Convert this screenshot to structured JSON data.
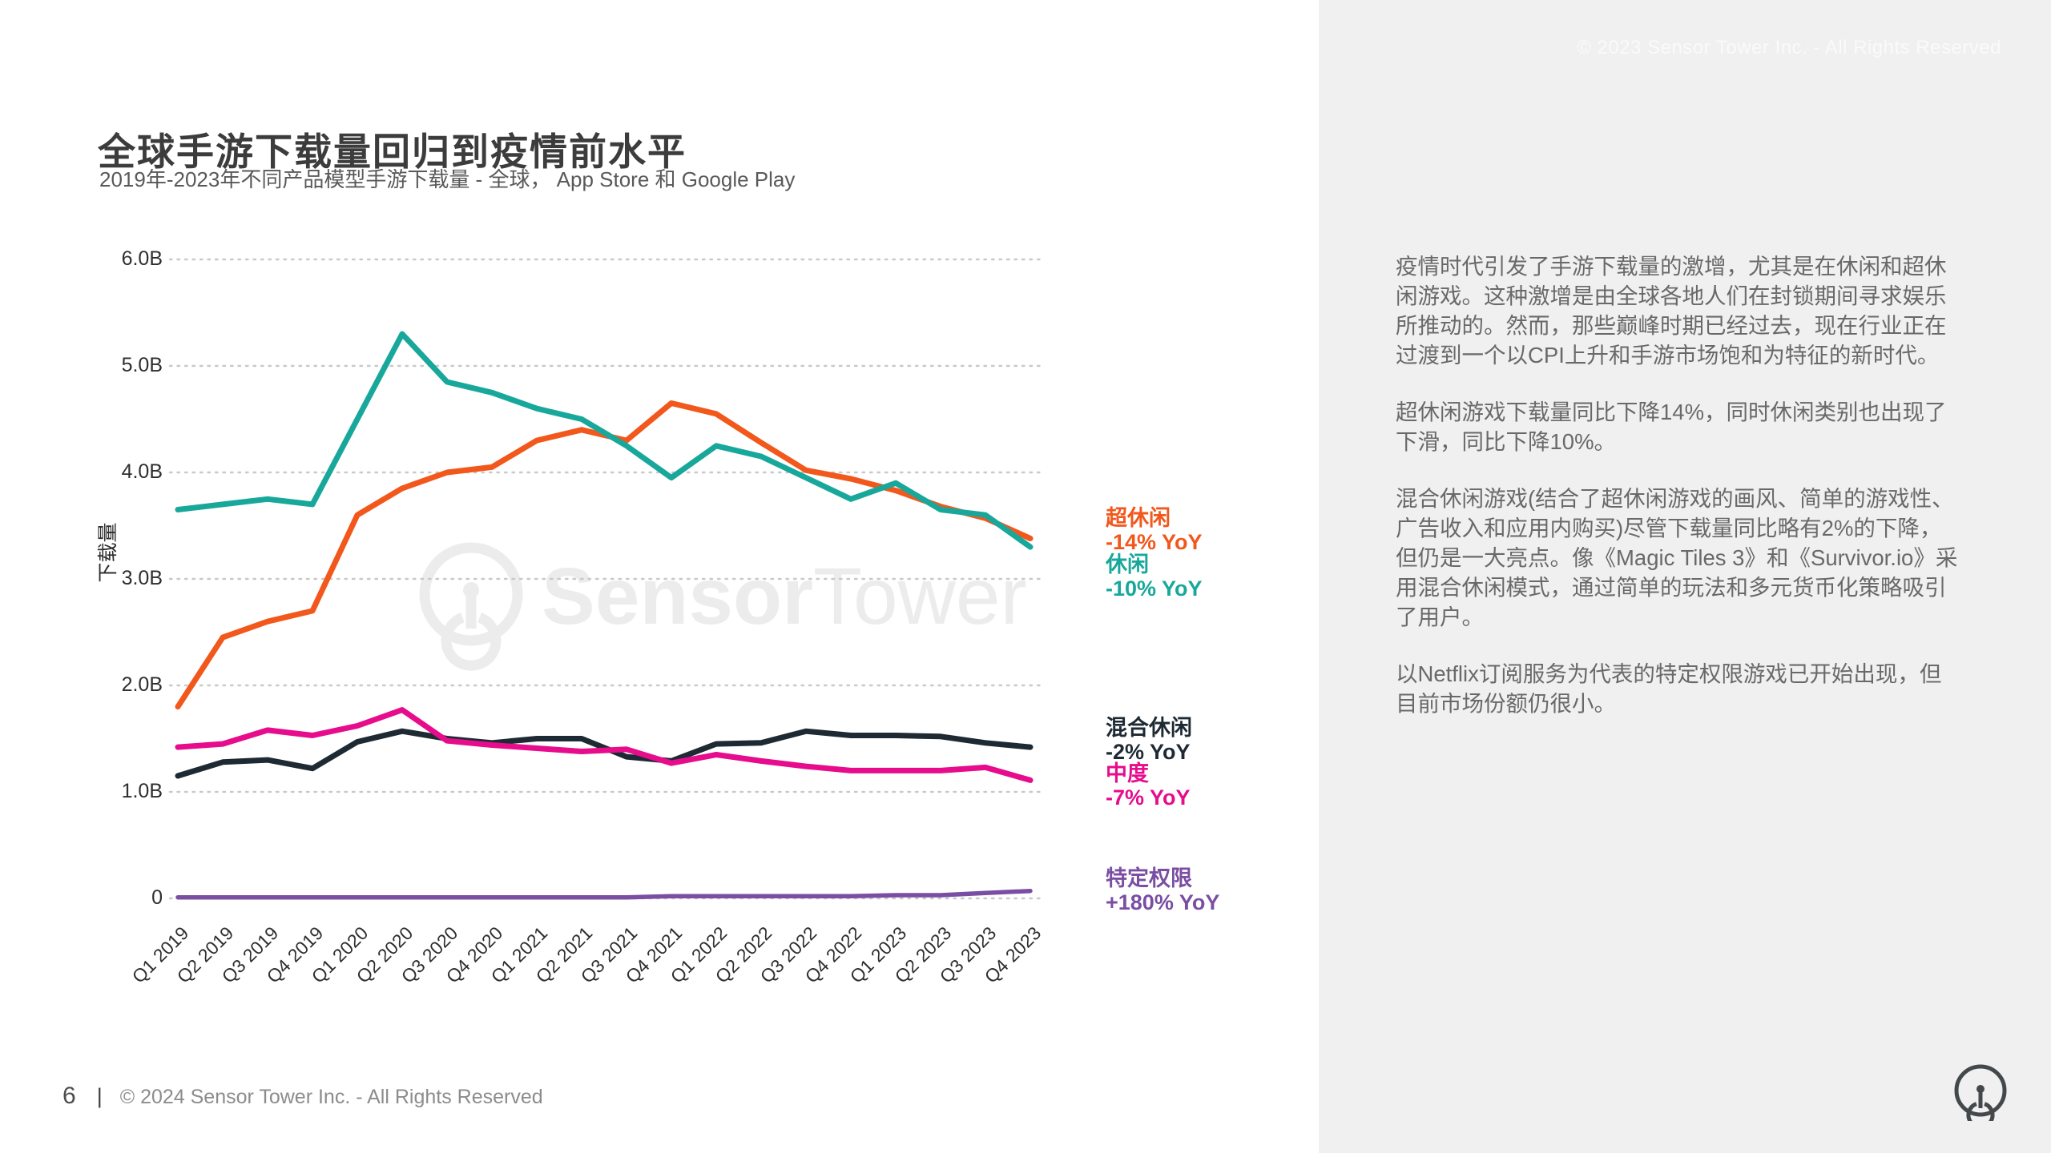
{
  "header": {
    "title": "全球手游下载量回归到疫情前水平",
    "subtitle": "2019年-2023年不同产品模型手游下载量 - 全球， App Store 和 Google Play"
  },
  "top_right_note": "© 2023 Sensor Tower Inc. - All Rights Reserved",
  "watermark": {
    "brand_bold": "Sensor",
    "brand_light": "Tower"
  },
  "chart_data": {
    "type": "line",
    "title": "全球手游下载量回归到疫情前水平",
    "xlabel": "",
    "ylabel": "下载量",
    "unit": "billions of downloads",
    "ylim": [
      0,
      6.0
    ],
    "grid": "horizontal dotted",
    "legend_position": "right of line ends",
    "y_ticks": [
      "6.0B",
      "5.0B",
      "4.0B",
      "3.0B",
      "2.0B",
      "1.0B",
      "0"
    ],
    "x": [
      "Q1 2019",
      "Q2 2019",
      "Q3 2019",
      "Q4 2019",
      "Q1 2020",
      "Q2 2020",
      "Q3 2020",
      "Q4 2020",
      "Q1 2021",
      "Q2 2021",
      "Q3 2021",
      "Q4 2021",
      "Q1 2022",
      "Q2 2022",
      "Q3 2022",
      "Q4 2022",
      "Q1 2023",
      "Q2 2023",
      "Q3 2023",
      "Q4 2023"
    ],
    "series": [
      {
        "name": "超休闲",
        "yoy": "-14% YoY",
        "color": "#F2571C",
        "values": [
          1.8,
          2.45,
          2.6,
          2.7,
          3.6,
          3.85,
          4.0,
          4.05,
          4.3,
          4.4,
          4.3,
          4.65,
          4.55,
          4.28,
          4.02,
          3.94,
          3.83,
          3.68,
          3.57,
          3.38
        ]
      },
      {
        "name": "休闲",
        "yoy": "-10% YoY",
        "color": "#18A89B",
        "values": [
          3.65,
          3.7,
          3.75,
          3.7,
          4.5,
          5.3,
          4.85,
          4.75,
          4.6,
          4.5,
          4.25,
          3.95,
          4.25,
          4.15,
          3.95,
          3.75,
          3.9,
          3.65,
          3.6,
          3.3
        ]
      },
      {
        "name": "混合休闲",
        "yoy": "-2% YoY",
        "color": "#1E2A33",
        "values": [
          1.15,
          1.28,
          1.3,
          1.22,
          1.47,
          1.57,
          1.5,
          1.46,
          1.5,
          1.5,
          1.33,
          1.29,
          1.45,
          1.46,
          1.57,
          1.53,
          1.53,
          1.52,
          1.46,
          1.42
        ]
      },
      {
        "name": "中度",
        "yoy": "-7% YoY",
        "color": "#E60C8C",
        "values": [
          1.42,
          1.45,
          1.58,
          1.53,
          1.62,
          1.77,
          1.48,
          1.44,
          1.41,
          1.38,
          1.4,
          1.27,
          1.35,
          1.29,
          1.24,
          1.2,
          1.2,
          1.2,
          1.23,
          1.11
        ]
      },
      {
        "name": "特定权限",
        "yoy": "+180% YoY",
        "color": "#7A4FA3",
        "values": [
          0.01,
          0.01,
          0.01,
          0.01,
          0.01,
          0.01,
          0.01,
          0.01,
          0.01,
          0.01,
          0.01,
          0.02,
          0.02,
          0.02,
          0.02,
          0.02,
          0.03,
          0.03,
          0.05,
          0.07
        ]
      }
    ]
  },
  "sidebar": {
    "paragraphs": [
      "疫情时代引发了手游下载量的激增，尤其是在休闲和超休闲游戏。这种激增是由全球各地人们在封锁期间寻求娱乐所推动的。然而，那些巅峰时期已经过去，现在行业正在过渡到一个以CPI上升和手游市场饱和为特征的新时代。",
      "超休闲游戏下载量同比下降14%，同时休闲类别也出现了下滑，同比下降10%。",
      "混合休闲游戏(结合了超休闲游戏的画风、简单的游戏性、广告收入和应用内购买)尽管下载量同比略有2%的下降，但仍是一大亮点。像《Magic Tiles 3》和《Survivor.io》采用混合休闲模式，通过简单的玩法和多元货币化策略吸引了用户。",
      "以Netflix订阅服务为代表的特定权限游戏已开始出现，但目前市场份额仍很小。"
    ]
  },
  "footer": {
    "page": "6",
    "separator": "|",
    "copyright": "© 2024 Sensor Tower Inc. - All Rights Reserved"
  }
}
